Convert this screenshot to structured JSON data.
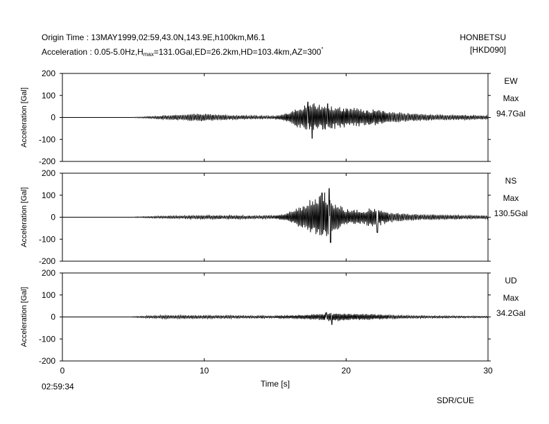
{
  "header": {
    "origin_line": "Origin Time : 13MAY1999,02:59,43.0N,143.9E,h100km,M6.1",
    "accel_prefix": "Acceleration : 0.05-5.0Hz,H",
    "accel_sub": "max",
    "accel_rest": "=131.0Gal,ED=26.2km,HD=103.4km,AZ=300",
    "accel_sup": "°",
    "station": "HONBETSU",
    "station_code": "[HKD090]"
  },
  "footer": {
    "start_time": "02:59:34",
    "credit": "SDR/CUE"
  },
  "chart_data": {
    "type": "line",
    "xlabel": "Time [s]",
    "xlim": [
      0,
      30
    ],
    "xticks": [
      0,
      10,
      20,
      30
    ],
    "ylim": [
      -200,
      200
    ],
    "yticks": [
      200,
      100,
      0,
      -100,
      -200
    ],
    "grid": false,
    "panels": [
      {
        "component": "EW",
        "max_label": "Max",
        "max_value": "94.7Gal",
        "ylabel": "Acceleration [Gal]",
        "envelope": [
          [
            0,
            0
          ],
          [
            5,
            0
          ],
          [
            5.1,
            2
          ],
          [
            6,
            4
          ],
          [
            7,
            9
          ],
          [
            8,
            12
          ],
          [
            9.5,
            20
          ],
          [
            11,
            13
          ],
          [
            13,
            9
          ],
          [
            15,
            7
          ],
          [
            15.8,
            22
          ],
          [
            16.5,
            45
          ],
          [
            17.5,
            70
          ],
          [
            18.5,
            58
          ],
          [
            19.5,
            52
          ],
          [
            21,
            45
          ],
          [
            22,
            40
          ],
          [
            23,
            30
          ],
          [
            24,
            22
          ],
          [
            26,
            14
          ],
          [
            28,
            12
          ],
          [
            30,
            10
          ]
        ],
        "peaks": [
          [
            17.6,
            -95
          ],
          [
            17.3,
            70
          ],
          [
            18.7,
            62
          ]
        ]
      },
      {
        "component": "NS",
        "max_label": "Max",
        "max_value": "130.5Gal",
        "ylabel": "Acceleration [Gal]",
        "envelope": [
          [
            0,
            0
          ],
          [
            5,
            0
          ],
          [
            5.1,
            2
          ],
          [
            6,
            4
          ],
          [
            8,
            7
          ],
          [
            10,
            10
          ],
          [
            13,
            8
          ],
          [
            15,
            8
          ],
          [
            15.8,
            18
          ],
          [
            16.5,
            45
          ],
          [
            17.5,
            80
          ],
          [
            18.5,
            120
          ],
          [
            19.2,
            70
          ],
          [
            20,
            40
          ],
          [
            21,
            35
          ],
          [
            22,
            48
          ],
          [
            23,
            25
          ],
          [
            25,
            14
          ],
          [
            28,
            10
          ],
          [
            30,
            8
          ]
        ],
        "peaks": [
          [
            18.8,
            130.5
          ],
          [
            18.9,
            -115
          ],
          [
            18.3,
            110
          ],
          [
            22.2,
            -70
          ]
        ]
      },
      {
        "component": "UD",
        "max_label": "Max",
        "max_value": "34.2Gal",
        "ylabel": "Acceleration [Gal]",
        "envelope": [
          [
            0,
            0
          ],
          [
            4.8,
            0
          ],
          [
            4.9,
            2
          ],
          [
            6,
            6
          ],
          [
            7.5,
            9
          ],
          [
            9,
            8
          ],
          [
            12,
            7
          ],
          [
            15,
            6
          ],
          [
            16.5,
            8
          ],
          [
            18,
            14
          ],
          [
            19,
            22
          ],
          [
            20,
            16
          ],
          [
            21.5,
            14
          ],
          [
            23,
            10
          ],
          [
            25,
            7
          ],
          [
            28,
            5
          ],
          [
            30,
            4
          ]
        ],
        "peaks": [
          [
            19.0,
            -34.2
          ],
          [
            18.6,
            20
          ]
        ]
      }
    ]
  }
}
